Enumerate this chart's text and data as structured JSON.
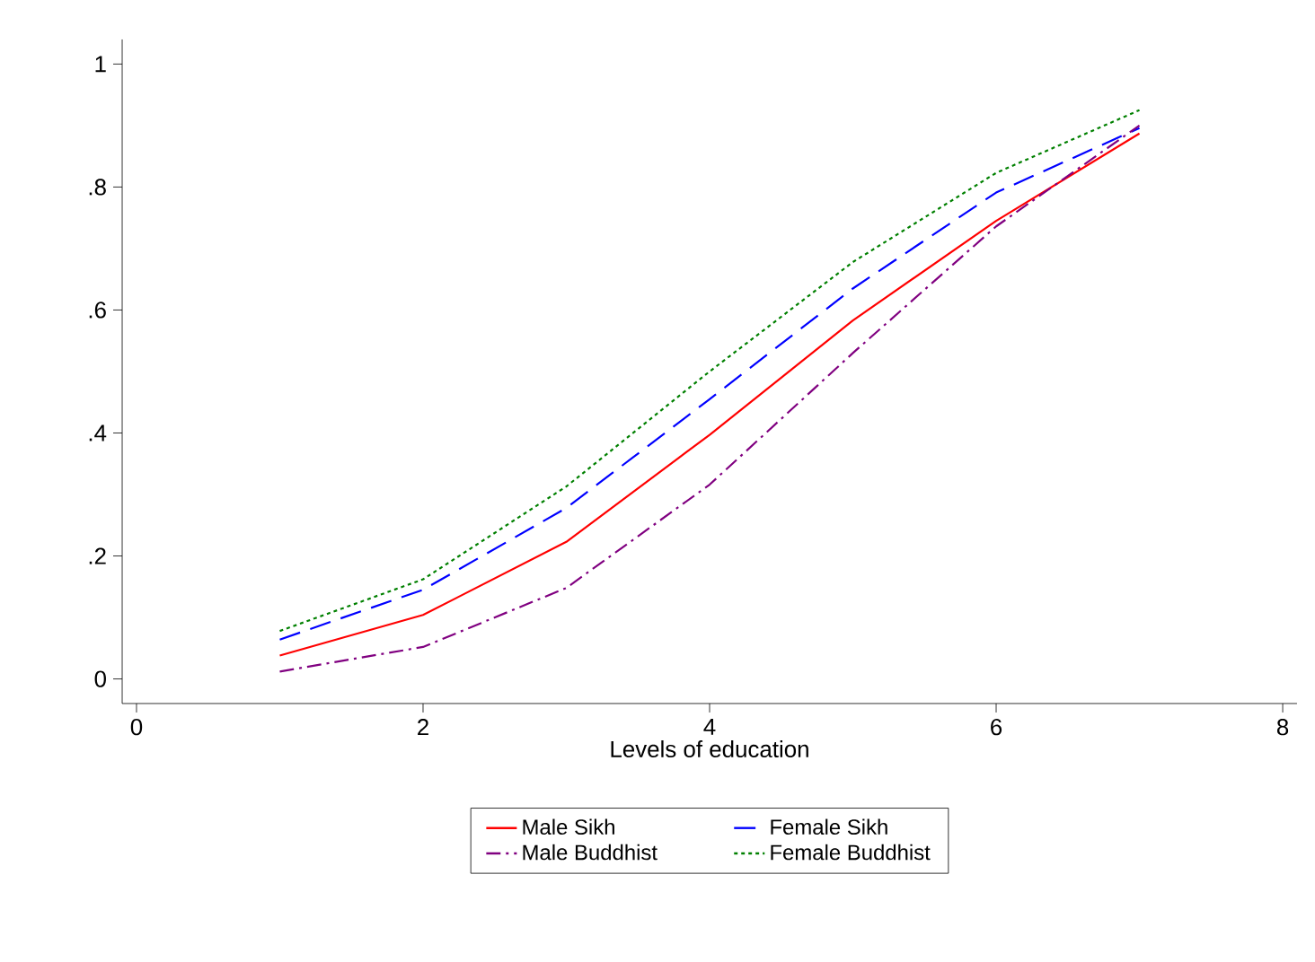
{
  "chart_data": {
    "type": "line",
    "xlabel": "Levels of education",
    "x": [
      1,
      2,
      3,
      4,
      5,
      6,
      7
    ],
    "series": [
      {
        "name": "Male Sikh",
        "color": "#ff0000",
        "line_style": "solid",
        "values": [
          0.038,
          0.104,
          0.223,
          0.397,
          0.583,
          0.745,
          0.887
        ]
      },
      {
        "name": "Female Sikh",
        "color": "#0000ff",
        "line_style": "dashed",
        "values": [
          0.064,
          0.145,
          0.278,
          0.455,
          0.635,
          0.791,
          0.896
        ]
      },
      {
        "name": "Male Buddhist",
        "color": "#800080",
        "line_style": "dashdot",
        "values": [
          0.012,
          0.052,
          0.148,
          0.316,
          0.53,
          0.736,
          0.9
        ]
      },
      {
        "name": "Female Buddhist",
        "color": "#008000",
        "line_style": "dotted",
        "values": [
          0.078,
          0.162,
          0.313,
          0.5,
          0.678,
          0.823,
          0.925
        ]
      }
    ],
    "xlim": [
      -0.1,
      8.1
    ],
    "ylim": [
      -0.04,
      1.04
    ],
    "xticks": [
      0,
      2,
      4,
      6,
      8
    ],
    "yticks": [
      {
        "value": 0,
        "label": "0"
      },
      {
        "value": 0.2,
        "label": ".2"
      },
      {
        "value": 0.4,
        "label": ".4"
      },
      {
        "value": 0.6,
        "label": ".6"
      },
      {
        "value": 0.8,
        "label": ".8"
      },
      {
        "value": 1,
        "label": "1"
      }
    ],
    "grid": false,
    "legend": "bottom",
    "marker": "none"
  }
}
